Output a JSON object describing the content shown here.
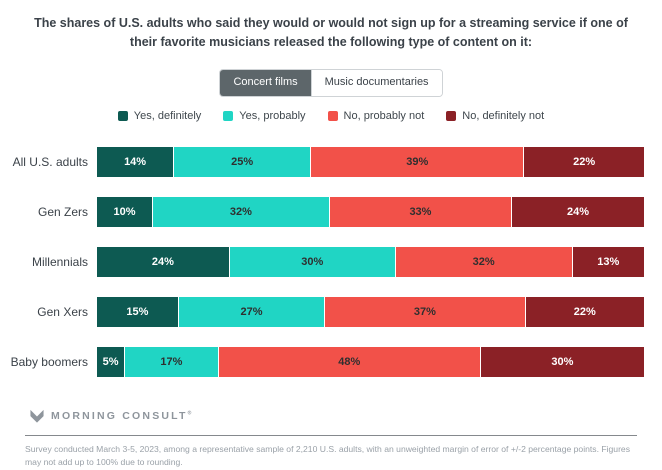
{
  "title": "The shares of U.S. adults who said they would or would not sign up for a streaming service if one of their favorite musicians released the following type of content on it:",
  "toggle": {
    "options": [
      {
        "label": "Concert films",
        "selected": true
      },
      {
        "label": "Music documentaries",
        "selected": false
      }
    ]
  },
  "chart_data": {
    "type": "bar",
    "orientation": "horizontal_stacked",
    "title": "The shares of U.S. adults who said they would or would not sign up for a streaming service if one of their favorite musicians released the following type of content on it:",
    "active_view": "Concert films",
    "categories": [
      "All U.S. adults",
      "Gen Zers",
      "Millennials",
      "Gen Xers",
      "Baby boomers"
    ],
    "series": [
      {
        "name": "Yes, definitely",
        "color": "#0d5a52",
        "label_text_color": "#ffffff",
        "values": [
          14,
          10,
          24,
          15,
          5
        ]
      },
      {
        "name": "Yes, probably",
        "color": "#20d5c4",
        "label_text_color": "#2f2f2f",
        "values": [
          25,
          32,
          30,
          27,
          17
        ]
      },
      {
        "name": "No, probably not",
        "color": "#f25149",
        "label_text_color": "#2f2f2f",
        "values": [
          39,
          33,
          32,
          37,
          48
        ]
      },
      {
        "name": "No, definitely not",
        "color": "#8b2126",
        "label_text_color": "#ffffff",
        "values": [
          22,
          24,
          13,
          22,
          30
        ]
      }
    ],
    "value_suffix": "%",
    "xlim": [
      0,
      100
    ],
    "grid": false,
    "legend_position": "top-center"
  },
  "footer": {
    "logo_text": "MORNING CONSULT",
    "logo_mark": "®",
    "note": "Survey conducted March 3-5, 2023, among a representative sample of 2,210 U.S. adults, with an unweighted margin of error of +/-2 percentage points. Figures may not add up to 100% due to rounding."
  },
  "colors": {
    "title_text": "#3b4249",
    "toggle_selected_bg": "#5d666a",
    "toggle_border": "#cfd3d6",
    "legend_text": "#3f474d",
    "footer_text": "#9aa1a8",
    "logo_text": "#8e959c"
  }
}
